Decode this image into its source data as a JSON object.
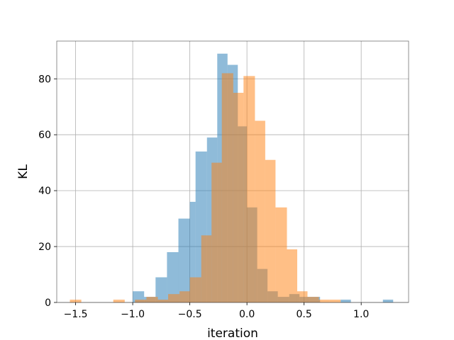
{
  "chart_data": {
    "type": "histogram",
    "title": "",
    "xlabel": "iteration",
    "ylabel": "KL",
    "xlim": [
      -1.665,
      1.415
    ],
    "ylim": [
      0,
      93.5
    ],
    "xticks": [
      -1.5,
      -1.0,
      -0.5,
      0.0,
      0.5,
      1.0
    ],
    "xtick_labels": [
      "−1.5",
      "−1.0",
      "−0.5",
      "0.0",
      "0.5",
      "1.0"
    ],
    "yticks": [
      0,
      20,
      40,
      60,
      80
    ],
    "ytick_labels": [
      "0",
      "20",
      "40",
      "60",
      "80"
    ],
    "grid": true,
    "legend": null,
    "series": [
      {
        "color": "#1f77b4",
        "alpha": 0.5,
        "bins": [
          {
            "x0": -1.0,
            "x1": -0.9,
            "count": 4
          },
          {
            "x0": -0.9,
            "x1": -0.8,
            "count": 2
          },
          {
            "x0": -0.8,
            "x1": -0.7,
            "count": 9
          },
          {
            "x0": -0.7,
            "x1": -0.6,
            "count": 18
          },
          {
            "x0": -0.6,
            "x1": -0.5,
            "count": 30
          },
          {
            "x0": -0.5,
            "x1": -0.45,
            "count": 36
          },
          {
            "x0": -0.45,
            "x1": -0.35,
            "count": 54
          },
          {
            "x0": -0.35,
            "x1": -0.26,
            "count": 59
          },
          {
            "x0": -0.26,
            "x1": -0.17,
            "count": 89
          },
          {
            "x0": -0.17,
            "x1": -0.08,
            "count": 85
          },
          {
            "x0": -0.08,
            "x1": 0.0,
            "count": 63
          },
          {
            "x0": 0.0,
            "x1": 0.09,
            "count": 34
          },
          {
            "x0": 0.09,
            "x1": 0.18,
            "count": 12
          },
          {
            "x0": 0.18,
            "x1": 0.27,
            "count": 4
          },
          {
            "x0": 0.27,
            "x1": 0.37,
            "count": 2
          },
          {
            "x0": 0.37,
            "x1": 0.46,
            "count": 3
          },
          {
            "x0": 0.46,
            "x1": 0.55,
            "count": 2
          },
          {
            "x0": 0.55,
            "x1": 0.64,
            "count": 2
          },
          {
            "x0": 0.82,
            "x1": 0.91,
            "count": 1
          },
          {
            "x0": 1.19,
            "x1": 1.28,
            "count": 1
          }
        ]
      },
      {
        "color": "#ff7f0e",
        "alpha": 0.5,
        "bins": [
          {
            "x0": -1.55,
            "x1": -1.45,
            "count": 1
          },
          {
            "x0": -1.17,
            "x1": -1.07,
            "count": 1
          },
          {
            "x0": -0.98,
            "x1": -0.88,
            "count": 1
          },
          {
            "x0": -0.88,
            "x1": -0.78,
            "count": 2
          },
          {
            "x0": -0.78,
            "x1": -0.69,
            "count": 1
          },
          {
            "x0": -0.69,
            "x1": -0.59,
            "count": 3
          },
          {
            "x0": -0.59,
            "x1": -0.5,
            "count": 4
          },
          {
            "x0": -0.5,
            "x1": -0.4,
            "count": 9
          },
          {
            "x0": -0.4,
            "x1": -0.31,
            "count": 24
          },
          {
            "x0": -0.31,
            "x1": -0.22,
            "count": 50
          },
          {
            "x0": -0.22,
            "x1": -0.12,
            "count": 82
          },
          {
            "x0": -0.12,
            "x1": -0.03,
            "count": 75
          },
          {
            "x0": -0.03,
            "x1": 0.07,
            "count": 81
          },
          {
            "x0": 0.07,
            "x1": 0.16,
            "count": 65
          },
          {
            "x0": 0.16,
            "x1": 0.25,
            "count": 51
          },
          {
            "x0": 0.25,
            "x1": 0.35,
            "count": 34
          },
          {
            "x0": 0.35,
            "x1": 0.44,
            "count": 19
          },
          {
            "x0": 0.44,
            "x1": 0.53,
            "count": 4
          },
          {
            "x0": 0.53,
            "x1": 0.63,
            "count": 2
          },
          {
            "x0": 0.63,
            "x1": 0.72,
            "count": 1
          },
          {
            "x0": 0.72,
            "x1": 0.82,
            "count": 1
          }
        ]
      }
    ]
  }
}
